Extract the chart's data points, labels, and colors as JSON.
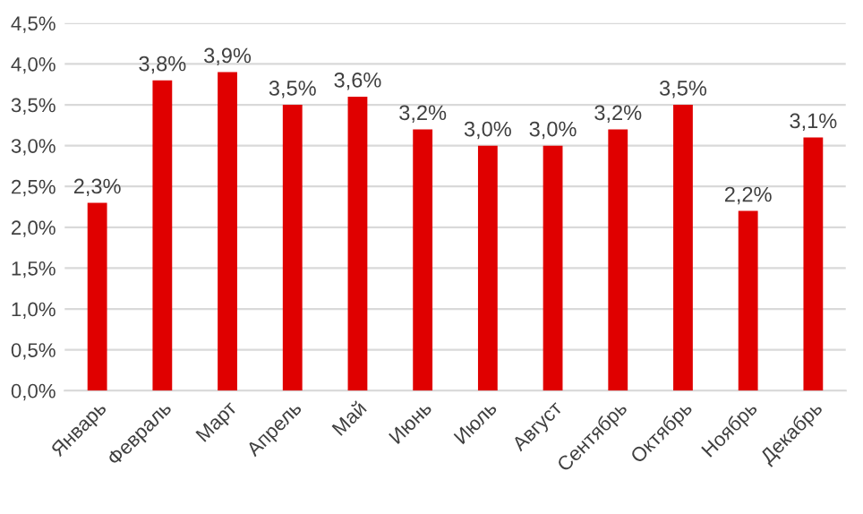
{
  "chart_data": {
    "type": "bar",
    "categories": [
      "Январь",
      "Февраль",
      "Март",
      "Апрель",
      "Май",
      "Июнь",
      "Июль",
      "Август",
      "Сентябрь",
      "Октябрь",
      "Ноябрь",
      "Декабрь"
    ],
    "values": [
      2.3,
      3.8,
      3.9,
      3.5,
      3.6,
      3.2,
      3.0,
      3.0,
      3.2,
      3.5,
      2.2,
      3.1
    ],
    "value_labels": [
      "2,3%",
      "3,8%",
      "3,9%",
      "3,5%",
      "3,6%",
      "3,2%",
      "3,0%",
      "3,0%",
      "3,2%",
      "3,5%",
      "2,2%",
      "3,1%"
    ],
    "color": "#e00000",
    "ylim": [
      0,
      4.5
    ],
    "yticks": [
      {
        "value": 0,
        "label": "0,0%"
      },
      {
        "value": 0.5,
        "label": "0,5%"
      },
      {
        "value": 1,
        "label": "1,0%"
      },
      {
        "value": 1.5,
        "label": "1,5%"
      },
      {
        "value": 2,
        "label": "2,0%"
      },
      {
        "value": 2.5,
        "label": "2,5%"
      },
      {
        "value": 3,
        "label": "3,0%"
      },
      {
        "value": 3.5,
        "label": "3,5%"
      },
      {
        "value": 4,
        "label": "4,0%"
      },
      {
        "value": 4.5,
        "label": "4,5%"
      }
    ],
    "grid": "y"
  }
}
